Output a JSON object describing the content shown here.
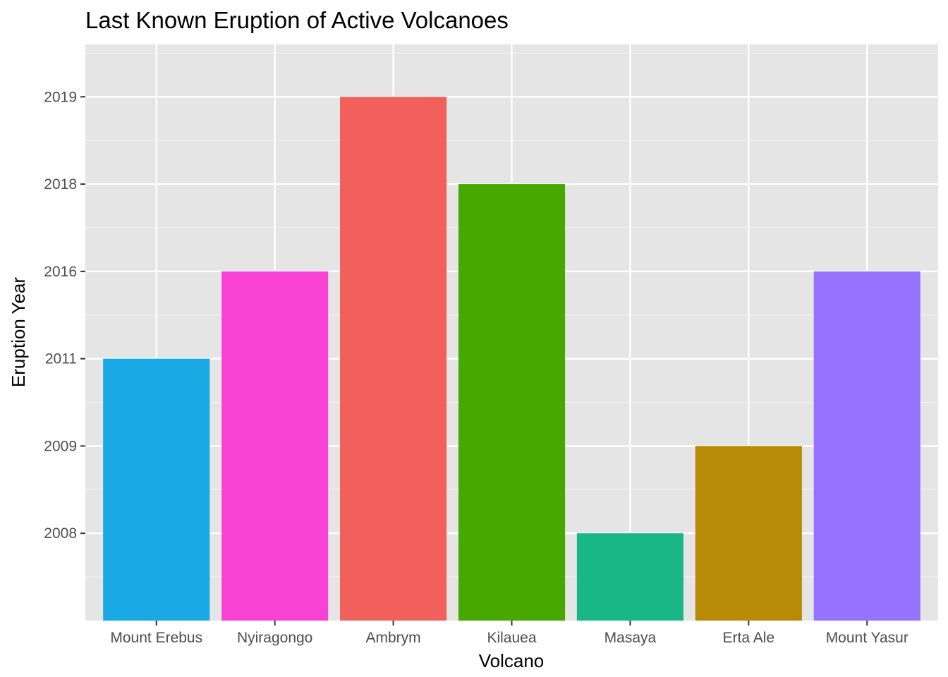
{
  "chart_data": {
    "type": "bar",
    "title": "Last Known Eruption of Active Volcanoes",
    "xlabel": "Volcano",
    "ylabel": "Eruption Year",
    "y_scale": "discrete-ordered",
    "y_tick_labels": [
      "2008",
      "2009",
      "2011",
      "2016",
      "2018",
      "2019"
    ],
    "categories": [
      "Mount Erebus",
      "Nyiragongo",
      "Ambrym",
      "Kilauea",
      "Masaya",
      "Erta Ale",
      "Mount Yasur"
    ],
    "values": [
      2011,
      2016,
      2019,
      2018,
      2008,
      2009,
      2016
    ],
    "colors": [
      "#19a9e4",
      "#f842d3",
      "#f2605c",
      "#47a800",
      "#19b785",
      "#b78a08",
      "#9672fe"
    ],
    "panel_background": "#e5e5e5",
    "grid": true,
    "legend": "none"
  }
}
